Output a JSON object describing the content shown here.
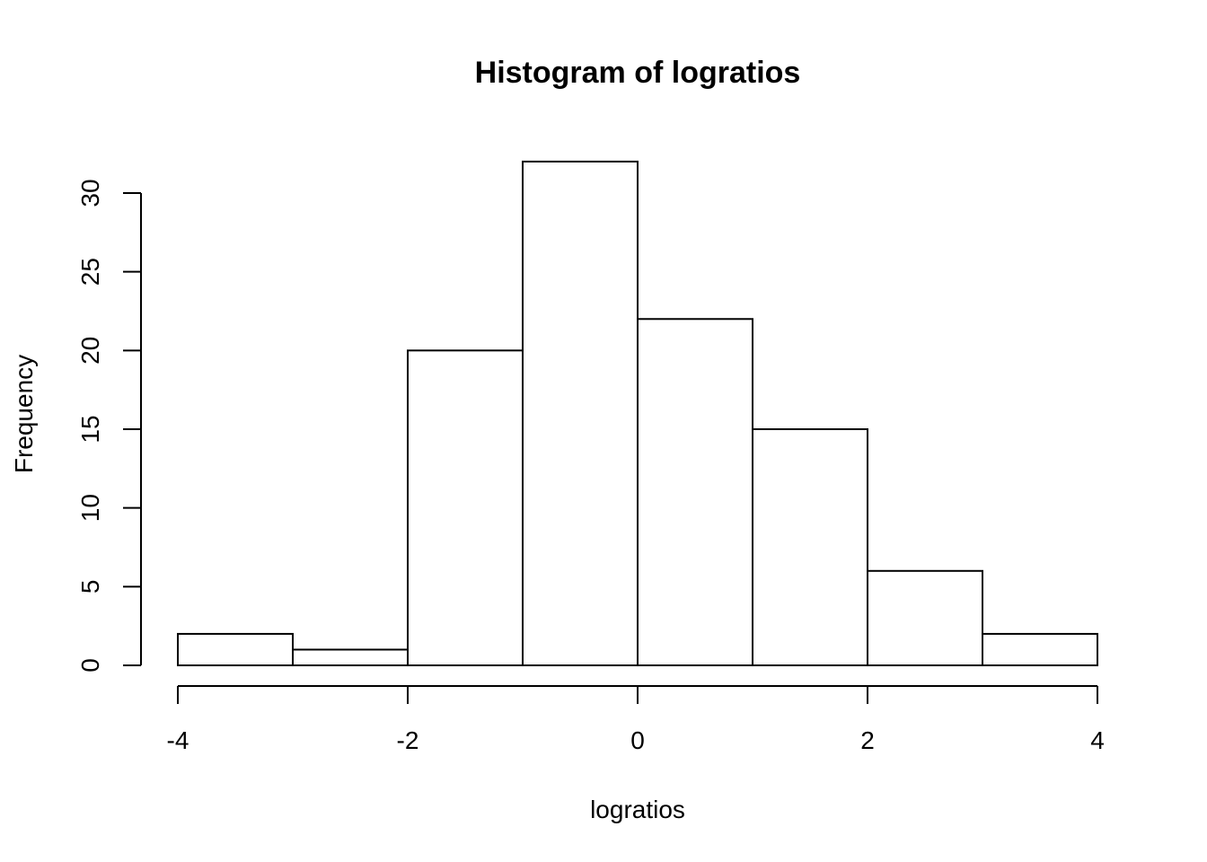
{
  "chart_data": {
    "type": "bar",
    "title": "Histogram of logratios",
    "xlabel": "logratios",
    "ylabel": "Frequency",
    "bins": [
      {
        "start": -4,
        "end": -3,
        "count": 2
      },
      {
        "start": -3,
        "end": -2,
        "count": 1
      },
      {
        "start": -2,
        "end": -1,
        "count": 20
      },
      {
        "start": -1,
        "end": 0,
        "count": 32
      },
      {
        "start": 0,
        "end": 1,
        "count": 22
      },
      {
        "start": 1,
        "end": 2,
        "count": 15
      },
      {
        "start": 2,
        "end": 3,
        "count": 6
      },
      {
        "start": 3,
        "end": 4,
        "count": 2
      }
    ],
    "x_ticks": [
      -4,
      -2,
      0,
      2,
      4
    ],
    "x_tick_labels": [
      "-4",
      "-2",
      "0",
      "2",
      "4"
    ],
    "y_ticks": [
      0,
      5,
      10,
      15,
      20,
      25,
      30
    ],
    "y_tick_labels": [
      "0",
      "5",
      "10",
      "15",
      "20",
      "25",
      "30"
    ],
    "xlim": [
      -4,
      4
    ],
    "ylim": [
      0,
      32
    ],
    "grid": false,
    "legend": "none",
    "colors": {
      "bar_fill": "#ffffff",
      "bar_stroke": "#000000"
    }
  }
}
